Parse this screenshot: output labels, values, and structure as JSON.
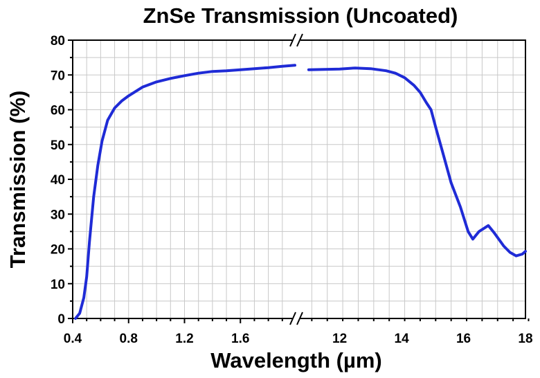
{
  "chart_data": {
    "type": "line",
    "title": "ZnSe Transmission (Uncoated)",
    "xlabel": "Wavelength (µm)",
    "ylabel": "Transmission (%)",
    "broken_x_axis": true,
    "x_segments": [
      {
        "range": [
          0.4,
          2.0
        ],
        "ticks": [
          0.4,
          0.8,
          1.2,
          1.6
        ],
        "tick_labels": [
          "0.4",
          "0.8",
          "1.2",
          "1.6"
        ]
      },
      {
        "range": [
          10.6,
          18
        ],
        "ticks": [
          12,
          14,
          16,
          18
        ],
        "tick_labels": [
          "12",
          "14",
          "16",
          "18"
        ]
      }
    ],
    "ylim": [
      0,
      80
    ],
    "y_ticks": [
      0,
      10,
      20,
      30,
      40,
      50,
      60,
      70,
      80
    ],
    "y_tick_labels": [
      "0",
      "10",
      "20",
      "30",
      "40",
      "50",
      "60",
      "70",
      "80"
    ],
    "grid": true,
    "line_color": "#1f2bd6",
    "series": [
      {
        "segment": 0,
        "points": [
          [
            0.42,
            0.0
          ],
          [
            0.45,
            1.5
          ],
          [
            0.48,
            6
          ],
          [
            0.5,
            12
          ],
          [
            0.52,
            22
          ],
          [
            0.55,
            35
          ],
          [
            0.58,
            44
          ],
          [
            0.61,
            51
          ],
          [
            0.65,
            57
          ],
          [
            0.7,
            60.5
          ],
          [
            0.75,
            62.5
          ],
          [
            0.8,
            64
          ],
          [
            0.9,
            66.5
          ],
          [
            1.0,
            68
          ],
          [
            1.1,
            69
          ],
          [
            1.2,
            69.8
          ],
          [
            1.3,
            70.5
          ],
          [
            1.4,
            71
          ],
          [
            1.5,
            71.2
          ],
          [
            1.6,
            71.5
          ],
          [
            1.7,
            71.8
          ],
          [
            1.8,
            72.1
          ],
          [
            1.9,
            72.5
          ],
          [
            1.99,
            72.8
          ]
        ]
      },
      {
        "segment": 1,
        "points": [
          [
            11.0,
            71.5
          ],
          [
            11.5,
            71.6
          ],
          [
            12.0,
            71.7
          ],
          [
            12.5,
            72.0
          ],
          [
            13.0,
            71.8
          ],
          [
            13.5,
            71.2
          ],
          [
            13.8,
            70.5
          ],
          [
            14.1,
            69.2
          ],
          [
            14.4,
            67
          ],
          [
            14.6,
            65
          ],
          [
            14.8,
            62
          ],
          [
            14.95,
            60
          ],
          [
            15.1,
            55
          ],
          [
            15.35,
            47
          ],
          [
            15.6,
            39
          ],
          [
            15.9,
            32
          ],
          [
            16.15,
            25
          ],
          [
            16.3,
            22.8
          ],
          [
            16.5,
            25
          ],
          [
            16.8,
            26.7
          ],
          [
            17.0,
            24.5
          ],
          [
            17.3,
            20.8
          ],
          [
            17.5,
            19
          ],
          [
            17.7,
            18
          ],
          [
            17.9,
            18.5
          ],
          [
            18.0,
            19.3
          ]
        ]
      }
    ]
  }
}
